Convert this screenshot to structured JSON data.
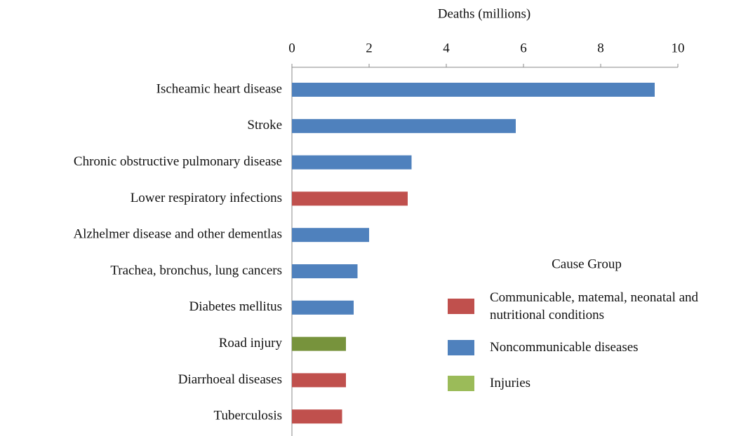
{
  "chart_data": {
    "type": "hbar",
    "xlabel": "Deaths (millions)",
    "categories": [
      "Ischeamic heart disease",
      "Stroke",
      "Chronic obstructive pulmonary disease",
      "Lower respiratory infections",
      "Alzhelmer disease and other dementlas",
      "Trachea, bronchus, lung cancers",
      "Diabetes mellitus",
      "Road injury",
      "Diarrhoeal diseases",
      "Tuberculosis"
    ],
    "values": [
      9.4,
      5.8,
      3.1,
      3.0,
      2.0,
      1.7,
      1.6,
      1.4,
      1.4,
      1.3
    ],
    "colors": [
      "#4f81bd",
      "#4f81bd",
      "#4f81bd",
      "#c0504d",
      "#4f81bd",
      "#4f81bd",
      "#4f81bd",
      "#77933c",
      "#c0504d",
      "#c0504d"
    ],
    "xlim": [
      0,
      10
    ],
    "xticks": [
      0,
      2,
      4,
      6,
      8,
      10
    ],
    "legend": {
      "title": "Cause Group",
      "items": [
        {
          "name": "Communicable, matemal, neonatal and nutritional conditions",
          "color": "#c0504d"
        },
        {
          "name": "Noncommunicable diseases",
          "color": "#4f81bd"
        },
        {
          "name": "Injuries",
          "color": "#9bbb59"
        }
      ]
    }
  }
}
